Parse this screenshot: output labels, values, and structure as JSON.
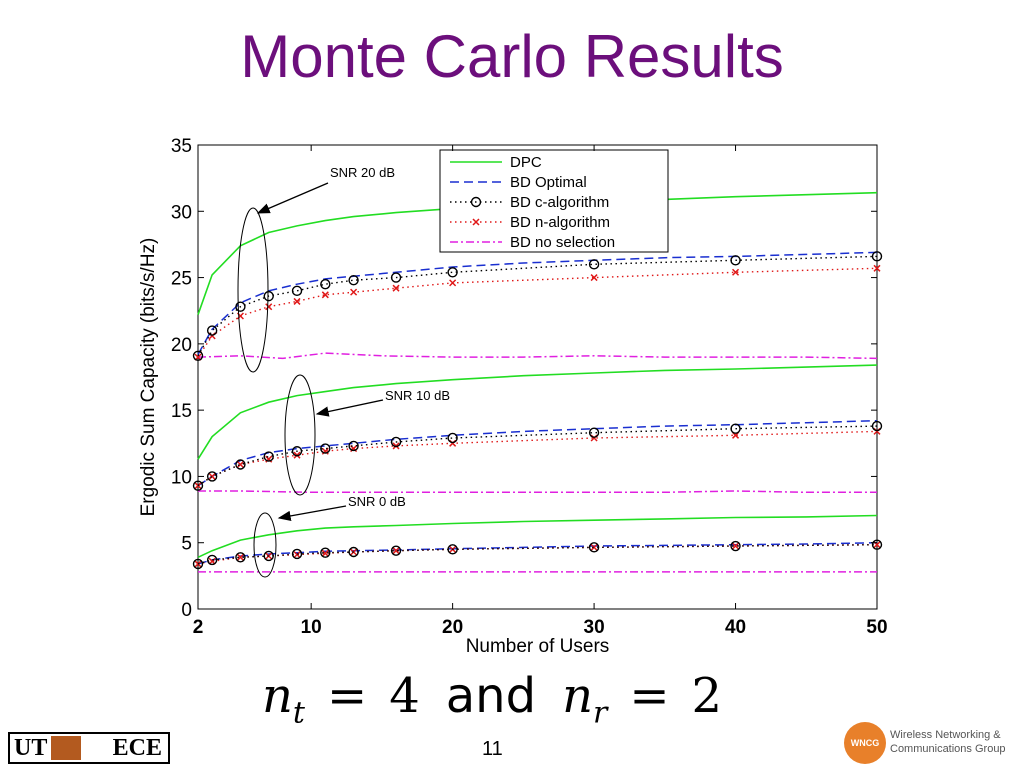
{
  "slide": {
    "title": "Monte Carlo Results",
    "formula": {
      "var1": "n",
      "sub1": "t",
      "val1": "4",
      "and": "and",
      "var2": "n",
      "sub2": "r",
      "val2": "2",
      "eq": "="
    },
    "page_number": "11",
    "footer": {
      "left_logo_text_1": "UT",
      "left_logo_text_2": "ECE",
      "right_logo_badge": "WNCG",
      "right_logo_line1": "Wireless Networking &",
      "right_logo_line2": "Communications Group"
    }
  },
  "colors": {
    "title": "#6c0f7c",
    "dpc": "#22dd22",
    "bd_optimal": "#1a2fd0",
    "bd_c": "#000000",
    "bd_n": "#e01818",
    "bd_none": "#e020e0"
  },
  "chart_data": {
    "type": "line",
    "xlabel": "Number of Users",
    "ylabel": "Ergodic Sum Capacity (bits/s/Hz)",
    "xlim": [
      2,
      50
    ],
    "ylim": [
      0,
      35
    ],
    "xticks": [
      2,
      10,
      20,
      30,
      40,
      50
    ],
    "yticks": [
      0,
      5,
      10,
      15,
      20,
      25,
      30,
      35
    ],
    "legend_position": "top-center",
    "legend": [
      "DPC",
      "BD Optimal",
      "BD c-algorithm",
      "BD n-algorithm",
      "BD no selection"
    ],
    "annotations": [
      {
        "text": "SNR 20 dB",
        "x": 5,
        "y": 24
      },
      {
        "text": "SNR 10 dB",
        "x": 10,
        "y": 13
      },
      {
        "text": "SNR 0 dB",
        "x": 6.5,
        "y": 4.7
      }
    ],
    "groups": [
      {
        "snr": "SNR 20 dB",
        "dpc": {
          "x": [
            2,
            3,
            5,
            7,
            9,
            11,
            13,
            16,
            20,
            25,
            30,
            35,
            40,
            45,
            50
          ],
          "y": [
            22.2,
            25.2,
            27.4,
            28.4,
            28.9,
            29.3,
            29.6,
            29.9,
            30.2,
            30.5,
            30.7,
            30.9,
            31.1,
            31.25,
            31.4
          ]
        },
        "bd_optimal": {
          "x": [
            2,
            3,
            5,
            7,
            9,
            11,
            13,
            16,
            20,
            25,
            30,
            35,
            40,
            45,
            50
          ],
          "y": [
            19.2,
            21.1,
            23.1,
            24.0,
            24.5,
            24.9,
            25.1,
            25.4,
            25.8,
            26.1,
            26.3,
            26.5,
            26.6,
            26.75,
            26.9
          ]
        },
        "bd_c": {
          "x": [
            2,
            3,
            5,
            7,
            9,
            11,
            13,
            16,
            20,
            30,
            40,
            50
          ],
          "y": [
            19.1,
            21.0,
            22.8,
            23.6,
            24.0,
            24.5,
            24.8,
            25.0,
            25.4,
            26.0,
            26.3,
            26.6
          ]
        },
        "bd_n": {
          "x": [
            2,
            3,
            5,
            7,
            9,
            11,
            13,
            16,
            20,
            30,
            40,
            50
          ],
          "y": [
            19.0,
            20.6,
            22.1,
            22.8,
            23.2,
            23.7,
            23.9,
            24.2,
            24.6,
            25.0,
            25.4,
            25.7
          ]
        },
        "bd_none": {
          "x": [
            2,
            5,
            8,
            11,
            15,
            20,
            25,
            30,
            35,
            40,
            45,
            50
          ],
          "y": [
            19.0,
            19.1,
            18.9,
            19.3,
            19.1,
            19.0,
            19.0,
            19.1,
            19.0,
            19.0,
            19.0,
            18.9
          ]
        }
      },
      {
        "snr": "SNR 10 dB",
        "dpc": {
          "x": [
            2,
            3,
            5,
            7,
            9,
            11,
            13,
            16,
            20,
            25,
            30,
            35,
            40,
            45,
            50
          ],
          "y": [
            11.3,
            13.0,
            14.8,
            15.6,
            16.1,
            16.4,
            16.7,
            17.0,
            17.3,
            17.6,
            17.8,
            18.0,
            18.1,
            18.25,
            18.4
          ]
        },
        "bd_optimal": {
          "x": [
            2,
            3,
            5,
            7,
            9,
            11,
            13,
            16,
            20,
            25,
            30,
            35,
            40,
            45,
            50
          ],
          "y": [
            9.3,
            10.0,
            11.2,
            11.8,
            12.1,
            12.3,
            12.5,
            12.8,
            13.1,
            13.4,
            13.6,
            13.8,
            13.9,
            14.05,
            14.2
          ]
        },
        "bd_c": {
          "x": [
            2,
            3,
            5,
            7,
            9,
            11,
            13,
            16,
            20,
            30,
            40,
            50
          ],
          "y": [
            9.3,
            10.0,
            10.9,
            11.5,
            11.9,
            12.1,
            12.3,
            12.6,
            12.9,
            13.3,
            13.6,
            13.8
          ]
        },
        "bd_n": {
          "x": [
            2,
            3,
            5,
            7,
            9,
            11,
            13,
            16,
            20,
            30,
            40,
            50
          ],
          "y": [
            9.3,
            10.0,
            10.9,
            11.3,
            11.6,
            11.9,
            12.1,
            12.3,
            12.5,
            12.9,
            13.1,
            13.4
          ]
        },
        "bd_none": {
          "x": [
            2,
            5,
            10,
            15,
            20,
            25,
            30,
            35,
            40,
            45,
            50
          ],
          "y": [
            8.9,
            8.9,
            8.8,
            8.8,
            8.8,
            8.8,
            8.8,
            8.8,
            8.9,
            8.8,
            8.8
          ]
        }
      },
      {
        "snr": "SNR 0 dB",
        "dpc": {
          "x": [
            2,
            3,
            5,
            7,
            9,
            11,
            13,
            16,
            20,
            25,
            30,
            35,
            40,
            45,
            50
          ],
          "y": [
            3.9,
            4.4,
            5.2,
            5.6,
            5.9,
            6.1,
            6.2,
            6.3,
            6.45,
            6.6,
            6.7,
            6.8,
            6.9,
            6.95,
            7.05
          ]
        },
        "bd_optimal": {
          "x": [
            2,
            3,
            5,
            7,
            9,
            11,
            13,
            16,
            20,
            25,
            30,
            35,
            40,
            45,
            50
          ],
          "y": [
            3.4,
            3.7,
            4.0,
            4.15,
            4.25,
            4.35,
            4.4,
            4.45,
            4.55,
            4.65,
            4.75,
            4.8,
            4.85,
            4.9,
            5.0
          ]
        },
        "bd_c": {
          "x": [
            2,
            3,
            5,
            7,
            9,
            11,
            13,
            16,
            20,
            30,
            40,
            50
          ],
          "y": [
            3.4,
            3.7,
            3.9,
            4.0,
            4.15,
            4.25,
            4.3,
            4.4,
            4.5,
            4.65,
            4.75,
            4.85
          ]
        },
        "bd_n": {
          "x": [
            2,
            3,
            5,
            7,
            9,
            11,
            13,
            16,
            20,
            30,
            40,
            50
          ],
          "y": [
            3.4,
            3.6,
            3.9,
            4.0,
            4.1,
            4.2,
            4.3,
            4.4,
            4.5,
            4.65,
            4.75,
            4.85
          ]
        },
        "bd_none": {
          "x": [
            2,
            10,
            20,
            30,
            40,
            50
          ],
          "y": [
            2.8,
            2.8,
            2.8,
            2.8,
            2.8,
            2.8
          ]
        }
      }
    ]
  }
}
